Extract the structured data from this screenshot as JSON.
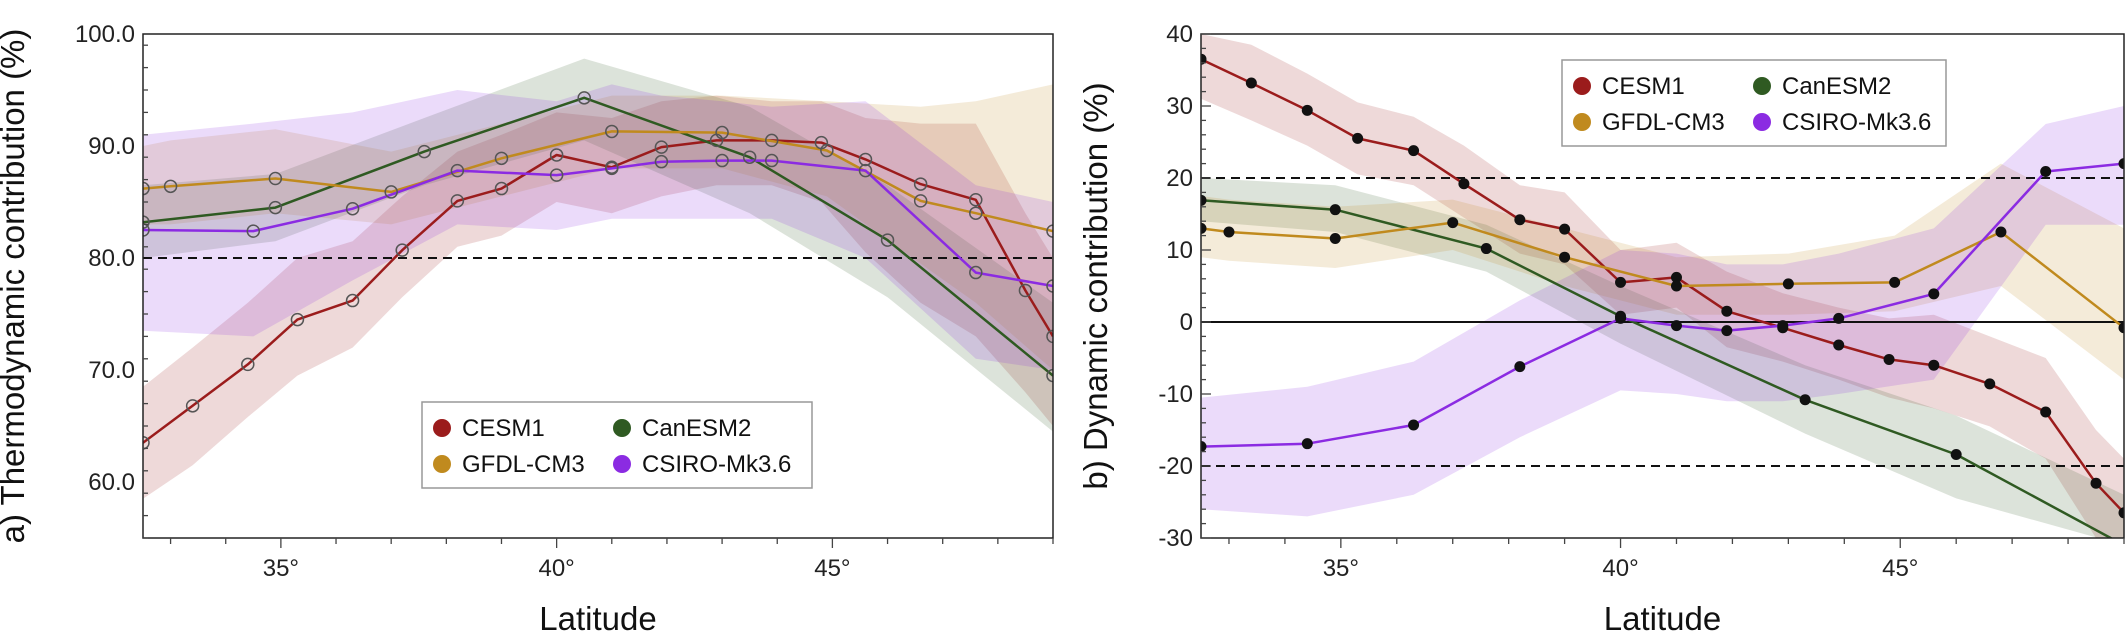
{
  "chart_data": [
    {
      "type": "line",
      "panel_label": "a)",
      "ylabel": "Thermodynamic contribution  (%)",
      "xlabel": "Latitude",
      "xlim": [
        32.5,
        49.0
      ],
      "ylim": [
        55.0,
        100.0
      ],
      "x_ticks": [
        35,
        40,
        45
      ],
      "x_tick_labels": [
        "35°",
        "40°",
        "45°"
      ],
      "y_ticks": [
        60,
        70,
        80,
        90,
        100
      ],
      "y_tick_labels": [
        "60.0",
        "70.0",
        "80.0",
        "90.0",
        "100.0"
      ],
      "reference_lines": [
        80
      ],
      "marker": "open-circle",
      "legend_position": "bottom-center",
      "series": [
        {
          "name": "CESM1",
          "color": "#9b1c1c",
          "x": [
            32.5,
            33.4,
            34.4,
            35.3,
            36.3,
            37.2,
            38.2,
            39.0,
            40.0,
            41.0,
            41.9,
            42.9,
            43.9,
            44.8,
            45.6,
            46.6,
            47.6,
            48.5,
            49.0
          ],
          "y": [
            63.5,
            66.8,
            70.5,
            74.5,
            76.2,
            80.7,
            85.1,
            86.2,
            89.2,
            88.1,
            89.9,
            90.5,
            90.5,
            90.3,
            88.8,
            86.6,
            85.2,
            77.1,
            73.0
          ],
          "band_low": [
            58.5,
            61.5,
            65.8,
            69.5,
            72.0,
            76.5,
            81.0,
            82.0,
            85.0,
            84.0,
            85.5,
            86.5,
            86.5,
            85.0,
            80.5,
            76.0,
            73.0,
            68.0,
            65.0
          ],
          "band_high": [
            68.5,
            72.0,
            76.0,
            80.0,
            81.5,
            85.5,
            89.5,
            91.0,
            93.0,
            92.5,
            94.0,
            94.5,
            94.0,
            94.0,
            92.5,
            92.0,
            92.0,
            84.0,
            80.0
          ]
        },
        {
          "name": "CanESM2",
          "color": "#2f5a22",
          "x": [
            32.5,
            34.9,
            37.6,
            40.5,
            43.5,
            46.0,
            49.0
          ],
          "y": [
            83.2,
            84.5,
            89.5,
            94.3,
            89.0,
            81.6,
            69.5
          ],
          "band_low": [
            80.0,
            81.5,
            86.5,
            90.5,
            84.0,
            76.5,
            64.5
          ],
          "band_high": [
            86.5,
            87.5,
            92.5,
            97.8,
            93.5,
            86.5,
            76.0
          ]
        },
        {
          "name": "GFDL-CM3",
          "color": "#c08a1e",
          "x": [
            32.5,
            33.0,
            34.9,
            37.0,
            39.0,
            41.0,
            43.0,
            44.9,
            46.6,
            47.6,
            49.0
          ],
          "y": [
            86.2,
            86.4,
            87.1,
            85.9,
            88.9,
            91.3,
            91.2,
            89.6,
            85.1,
            84.0,
            82.4
          ],
          "band_low": [
            83.0,
            83.0,
            84.0,
            83.0,
            85.5,
            88.0,
            88.0,
            85.5,
            79.5,
            76.0,
            70.0
          ],
          "band_high": [
            90.0,
            90.5,
            91.5,
            89.5,
            92.0,
            94.5,
            94.5,
            94.0,
            93.5,
            94.0,
            95.5
          ]
        },
        {
          "name": "CSIRO-Mk3.6",
          "color": "#8b2be2",
          "x": [
            32.5,
            34.5,
            36.3,
            38.2,
            40.0,
            41.0,
            41.9,
            43.0,
            43.9,
            45.6,
            47.6,
            49.0
          ],
          "y": [
            82.5,
            82.4,
            84.4,
            87.8,
            87.4,
            88.0,
            88.6,
            88.7,
            88.7,
            87.8,
            78.7,
            77.5
          ],
          "band_low": [
            73.5,
            73.0,
            78.0,
            83.0,
            82.5,
            83.5,
            83.5,
            83.5,
            83.5,
            80.0,
            71.0,
            70.0
          ],
          "band_high": [
            91.0,
            92.0,
            93.0,
            95.0,
            94.0,
            95.5,
            94.5,
            94.0,
            93.5,
            94.0,
            86.5,
            85.0
          ]
        }
      ]
    },
    {
      "type": "line",
      "panel_label": "b)",
      "ylabel": "Dynamic contribution  (%)",
      "xlabel": "Latitude",
      "xlim": [
        32.5,
        49.0
      ],
      "ylim": [
        -30,
        40
      ],
      "x_ticks": [
        35,
        40,
        45
      ],
      "x_tick_labels": [
        "35°",
        "40°",
        "45°"
      ],
      "y_ticks": [
        -30,
        -20,
        -10,
        0,
        10,
        20,
        30,
        40
      ],
      "y_tick_labels": [
        "-30",
        "-20",
        "-10",
        "0",
        "10",
        "20",
        "30",
        "40"
      ],
      "reference_lines_dashed": [
        20,
        -20
      ],
      "reference_lines_solid": [
        0
      ],
      "marker": "filled-circle",
      "legend_position": "top-center",
      "series": [
        {
          "name": "CESM1",
          "color": "#9b1c1c",
          "x": [
            32.5,
            33.4,
            34.4,
            35.3,
            36.3,
            37.2,
            38.2,
            39.0,
            40.0,
            41.0,
            41.9,
            42.9,
            43.9,
            44.8,
            45.6,
            46.6,
            47.6,
            48.5,
            49.0
          ],
          "y": [
            36.5,
            33.2,
            29.4,
            25.5,
            23.8,
            19.2,
            14.2,
            12.9,
            5.5,
            6.2,
            1.5,
            -0.8,
            -3.2,
            -5.2,
            -6.0,
            -8.6,
            -12.5,
            -22.4,
            -26.5
          ],
          "band_low": [
            31.0,
            28.0,
            24.5,
            20.5,
            19.0,
            14.5,
            9.5,
            8.0,
            1.0,
            2.0,
            -3.5,
            -5.5,
            -8.0,
            -10.5,
            -12.0,
            -14.5,
            -19.0,
            -30.0,
            -30.0
          ],
          "band_high": [
            40.0,
            38.5,
            34.5,
            30.5,
            28.5,
            24.5,
            19.0,
            18.0,
            10.0,
            11.0,
            7.0,
            4.0,
            2.0,
            0.5,
            1.0,
            -2.0,
            -5.0,
            -15.0,
            -19.0
          ]
        },
        {
          "name": "CanESM2",
          "color": "#2f5a22",
          "x": [
            32.5,
            34.9,
            37.6,
            40.0,
            43.3,
            46.0,
            49.0
          ],
          "y": [
            16.9,
            15.6,
            10.2,
            0.8,
            -10.8,
            -18.4,
            -31.0
          ],
          "band_low": [
            14.0,
            12.5,
            7.0,
            -3.0,
            -15.5,
            -24.5,
            -31.0
          ],
          "band_high": [
            20.0,
            19.0,
            13.5,
            5.0,
            -6.0,
            -13.0,
            -24.0
          ]
        },
        {
          "name": "GFDL-CM3",
          "color": "#c08a1e",
          "x": [
            32.5,
            33.0,
            34.9,
            37.0,
            39.0,
            41.0,
            43.0,
            44.9,
            46.8,
            49.0
          ],
          "y": [
            13.0,
            12.5,
            11.6,
            13.8,
            9.0,
            5.0,
            5.3,
            5.5,
            12.5,
            -0.8
          ],
          "band_low": [
            9.0,
            8.5,
            7.5,
            10.0,
            5.0,
            1.0,
            1.0,
            1.5,
            5.0,
            -8.0
          ],
          "band_high": [
            17.5,
            17.0,
            16.0,
            17.0,
            13.0,
            9.0,
            9.5,
            12.0,
            22.0,
            13.0
          ]
        },
        {
          "name": "CSIRO-Mk3.6",
          "color": "#8b2be2",
          "x": [
            32.5,
            34.4,
            36.3,
            38.2,
            40.0,
            41.0,
            41.9,
            42.9,
            43.9,
            45.6,
            47.6,
            49.0
          ],
          "y": [
            -17.3,
            -16.9,
            -14.3,
            -6.2,
            0.5,
            -0.5,
            -1.2,
            -0.5,
            0.5,
            3.9,
            20.9,
            22.0
          ],
          "band_low": [
            -26.0,
            -27.0,
            -24.0,
            -16.0,
            -9.5,
            -10.0,
            -11.0,
            -11.0,
            -10.0,
            -8.0,
            13.5,
            13.5
          ],
          "band_high": [
            -10.5,
            -9.0,
            -5.5,
            3.0,
            10.0,
            9.5,
            8.0,
            8.0,
            9.5,
            13.0,
            27.5,
            30.0
          ]
        }
      ]
    }
  ]
}
